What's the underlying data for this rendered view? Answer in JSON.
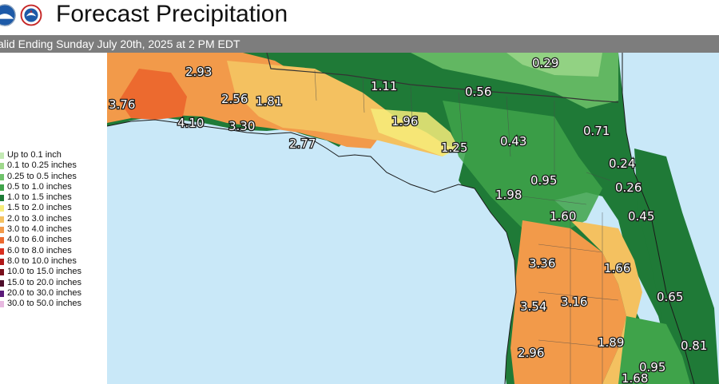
{
  "header": {
    "title": "Forecast Precipitation",
    "subtitle": "alid Ending Sunday July 20th, 2025 at 2 PM EDT"
  },
  "legend": {
    "items": [
      {
        "label": "Up to 0.1 inch",
        "color": "#c3e9b4"
      },
      {
        "label": "0.1 to 0.25 inches",
        "color": "#9fd88c"
      },
      {
        "label": "0.25 to 0.5 inches",
        "color": "#6fc26a"
      },
      {
        "label": "0.5 to 1.0 inches",
        "color": "#3fa34a"
      },
      {
        "label": "1.0 to 1.5 inches",
        "color": "#1c7a35"
      },
      {
        "label": "1.5 to 2.0 inches",
        "color": "#f6ec7a"
      },
      {
        "label": "2.0 to 3.0 inches",
        "color": "#f4c160"
      },
      {
        "label": "3.0 to 4.0 inches",
        "color": "#f29a4a"
      },
      {
        "label": "4.0 to 6.0 inches",
        "color": "#ec6a2f"
      },
      {
        "label": "6.0 to 8.0 inches",
        "color": "#d92f20"
      },
      {
        "label": "8.0 to 10.0 inches",
        "color": "#b01818"
      },
      {
        "label": "10.0 to 15.0 inches",
        "color": "#7a0f1c"
      },
      {
        "label": "15.0 to 20.0 inches",
        "color": "#4e0d2a"
      },
      {
        "label": "20.0 to 30.0 inches",
        "color": "#5b1a7a"
      },
      {
        "label": "30.0 to 50.0 inches",
        "color": "#e7b9e0"
      }
    ]
  },
  "labels": [
    {
      "id": "pensacola",
      "text": "3.76"
    },
    {
      "id": "crestview",
      "text": "2.93"
    },
    {
      "id": "destin",
      "text": "4.10"
    },
    {
      "id": "panama-city-n",
      "text": "2.56"
    },
    {
      "id": "marianna",
      "text": "1.81"
    },
    {
      "id": "panama-city",
      "text": "3.30"
    },
    {
      "id": "apalachicola",
      "text": "2.77"
    },
    {
      "id": "tallahassee",
      "text": "1.11"
    },
    {
      "id": "perry",
      "text": "1.96"
    },
    {
      "id": "cross-city",
      "text": "1.25"
    },
    {
      "id": "lake-city",
      "text": "0.56"
    },
    {
      "id": "georgia",
      "text": "0.29"
    },
    {
      "id": "gainesville",
      "text": "0.43"
    },
    {
      "id": "jacksonville",
      "text": "0.71"
    },
    {
      "id": "st-augustine",
      "text": "0.24"
    },
    {
      "id": "ocala",
      "text": "0.95"
    },
    {
      "id": "palm-coast",
      "text": "0.26"
    },
    {
      "id": "crystal-river",
      "text": "1.98"
    },
    {
      "id": "brooksville",
      "text": "1.60"
    },
    {
      "id": "daytona",
      "text": "0.45"
    },
    {
      "id": "lakeland",
      "text": "3.36"
    },
    {
      "id": "melbourne-w",
      "text": "1.66"
    },
    {
      "id": "bradenton",
      "text": "3.54"
    },
    {
      "id": "sebring",
      "text": "3.16"
    },
    {
      "id": "vero-beach",
      "text": "0.65"
    },
    {
      "id": "venice",
      "text": "2.96"
    },
    {
      "id": "okeechobee",
      "text": "1.89"
    },
    {
      "id": "palm-beach",
      "text": "0.81"
    },
    {
      "id": "south-fl",
      "text": "0.95"
    },
    {
      "id": "bottom",
      "text": "1.68"
    }
  ]
}
